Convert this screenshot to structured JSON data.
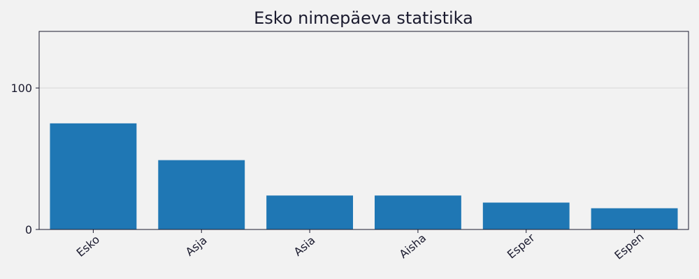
{
  "chart_data": {
    "type": "bar",
    "title": "Esko nimepäeva statistika",
    "xlabel": "",
    "ylabel": "",
    "categories": [
      "Esko",
      "Asja",
      "Asia",
      "Aisha",
      "Esper",
      "Espen"
    ],
    "values": [
      75,
      49,
      24,
      24,
      19,
      15
    ],
    "ylim": [
      0,
      140
    ],
    "yticks": [
      0,
      100
    ],
    "grid": "horizontal",
    "colors": {
      "bar": "#1f77b4",
      "background": "#f2f2f2",
      "grid": "#d9d9d9",
      "axis": "#1a1a2e"
    }
  }
}
